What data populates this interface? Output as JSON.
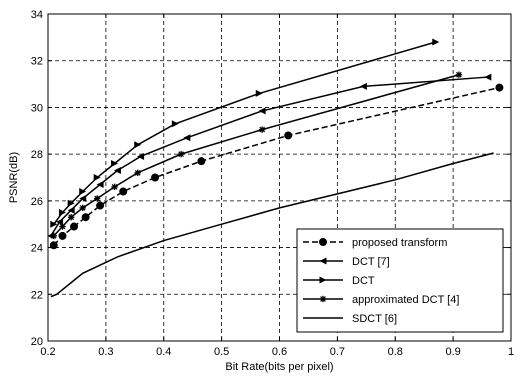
{
  "chart_data": {
    "type": "line",
    "title": "",
    "xlabel": "Bit Rate(bits per pixel)",
    "ylabel": "PSNR(dB)",
    "xlim": [
      0.2,
      1.0
    ],
    "ylim": [
      20,
      34
    ],
    "xticks": [
      "0.2",
      "0.3",
      "0.4",
      "0.5",
      "0.6",
      "0.7",
      "0.8",
      "0.9",
      "1"
    ],
    "yticks": [
      "20",
      "22",
      "24",
      "26",
      "28",
      "30",
      "32",
      "34"
    ],
    "grid": true,
    "legend_position": "bottom-right",
    "series": [
      {
        "name": "proposed transform",
        "marker": "circle",
        "dash": "dashed",
        "x": [
          0.21,
          0.225,
          0.245,
          0.265,
          0.29,
          0.33,
          0.385,
          0.465,
          0.615,
          0.98
        ],
        "y": [
          24.1,
          24.5,
          24.9,
          25.3,
          25.8,
          26.4,
          27.0,
          27.7,
          28.8,
          30.85
        ]
      },
      {
        "name": "DCT [7]",
        "marker": "triangle-left",
        "dash": "solid",
        "x": [
          0.205,
          0.22,
          0.24,
          0.26,
          0.29,
          0.32,
          0.36,
          0.44,
          0.57,
          0.745,
          0.96
        ],
        "y": [
          24.5,
          25.1,
          25.6,
          26.1,
          26.7,
          27.3,
          27.9,
          28.7,
          29.85,
          30.9,
          31.3
        ]
      },
      {
        "name": "DCT",
        "marker": "triangle-right",
        "dash": "solid",
        "x": [
          0.21,
          0.225,
          0.24,
          0.26,
          0.285,
          0.315,
          0.355,
          0.42,
          0.565,
          0.87
        ],
        "y": [
          25.0,
          25.5,
          25.9,
          26.4,
          27.0,
          27.6,
          28.4,
          29.3,
          30.6,
          32.8
        ]
      },
      {
        "name": "approximated DCT [4]",
        "marker": "star",
        "dash": "solid",
        "x": [
          0.21,
          0.225,
          0.24,
          0.26,
          0.285,
          0.315,
          0.355,
          0.43,
          0.57,
          0.91
        ],
        "y": [
          24.5,
          24.9,
          25.3,
          25.7,
          26.1,
          26.6,
          27.2,
          28.0,
          29.05,
          31.4
        ]
      },
      {
        "name": "SDCT [6]",
        "marker": "none",
        "dash": "solid",
        "x": [
          0.205,
          0.215,
          0.24,
          0.26,
          0.32,
          0.4,
          0.5,
          0.6,
          0.7,
          0.8,
          0.9,
          0.97
        ],
        "y": [
          21.9,
          22.0,
          22.5,
          22.9,
          23.6,
          24.3,
          25.0,
          25.7,
          26.3,
          26.9,
          27.6,
          28.05
        ]
      }
    ]
  }
}
